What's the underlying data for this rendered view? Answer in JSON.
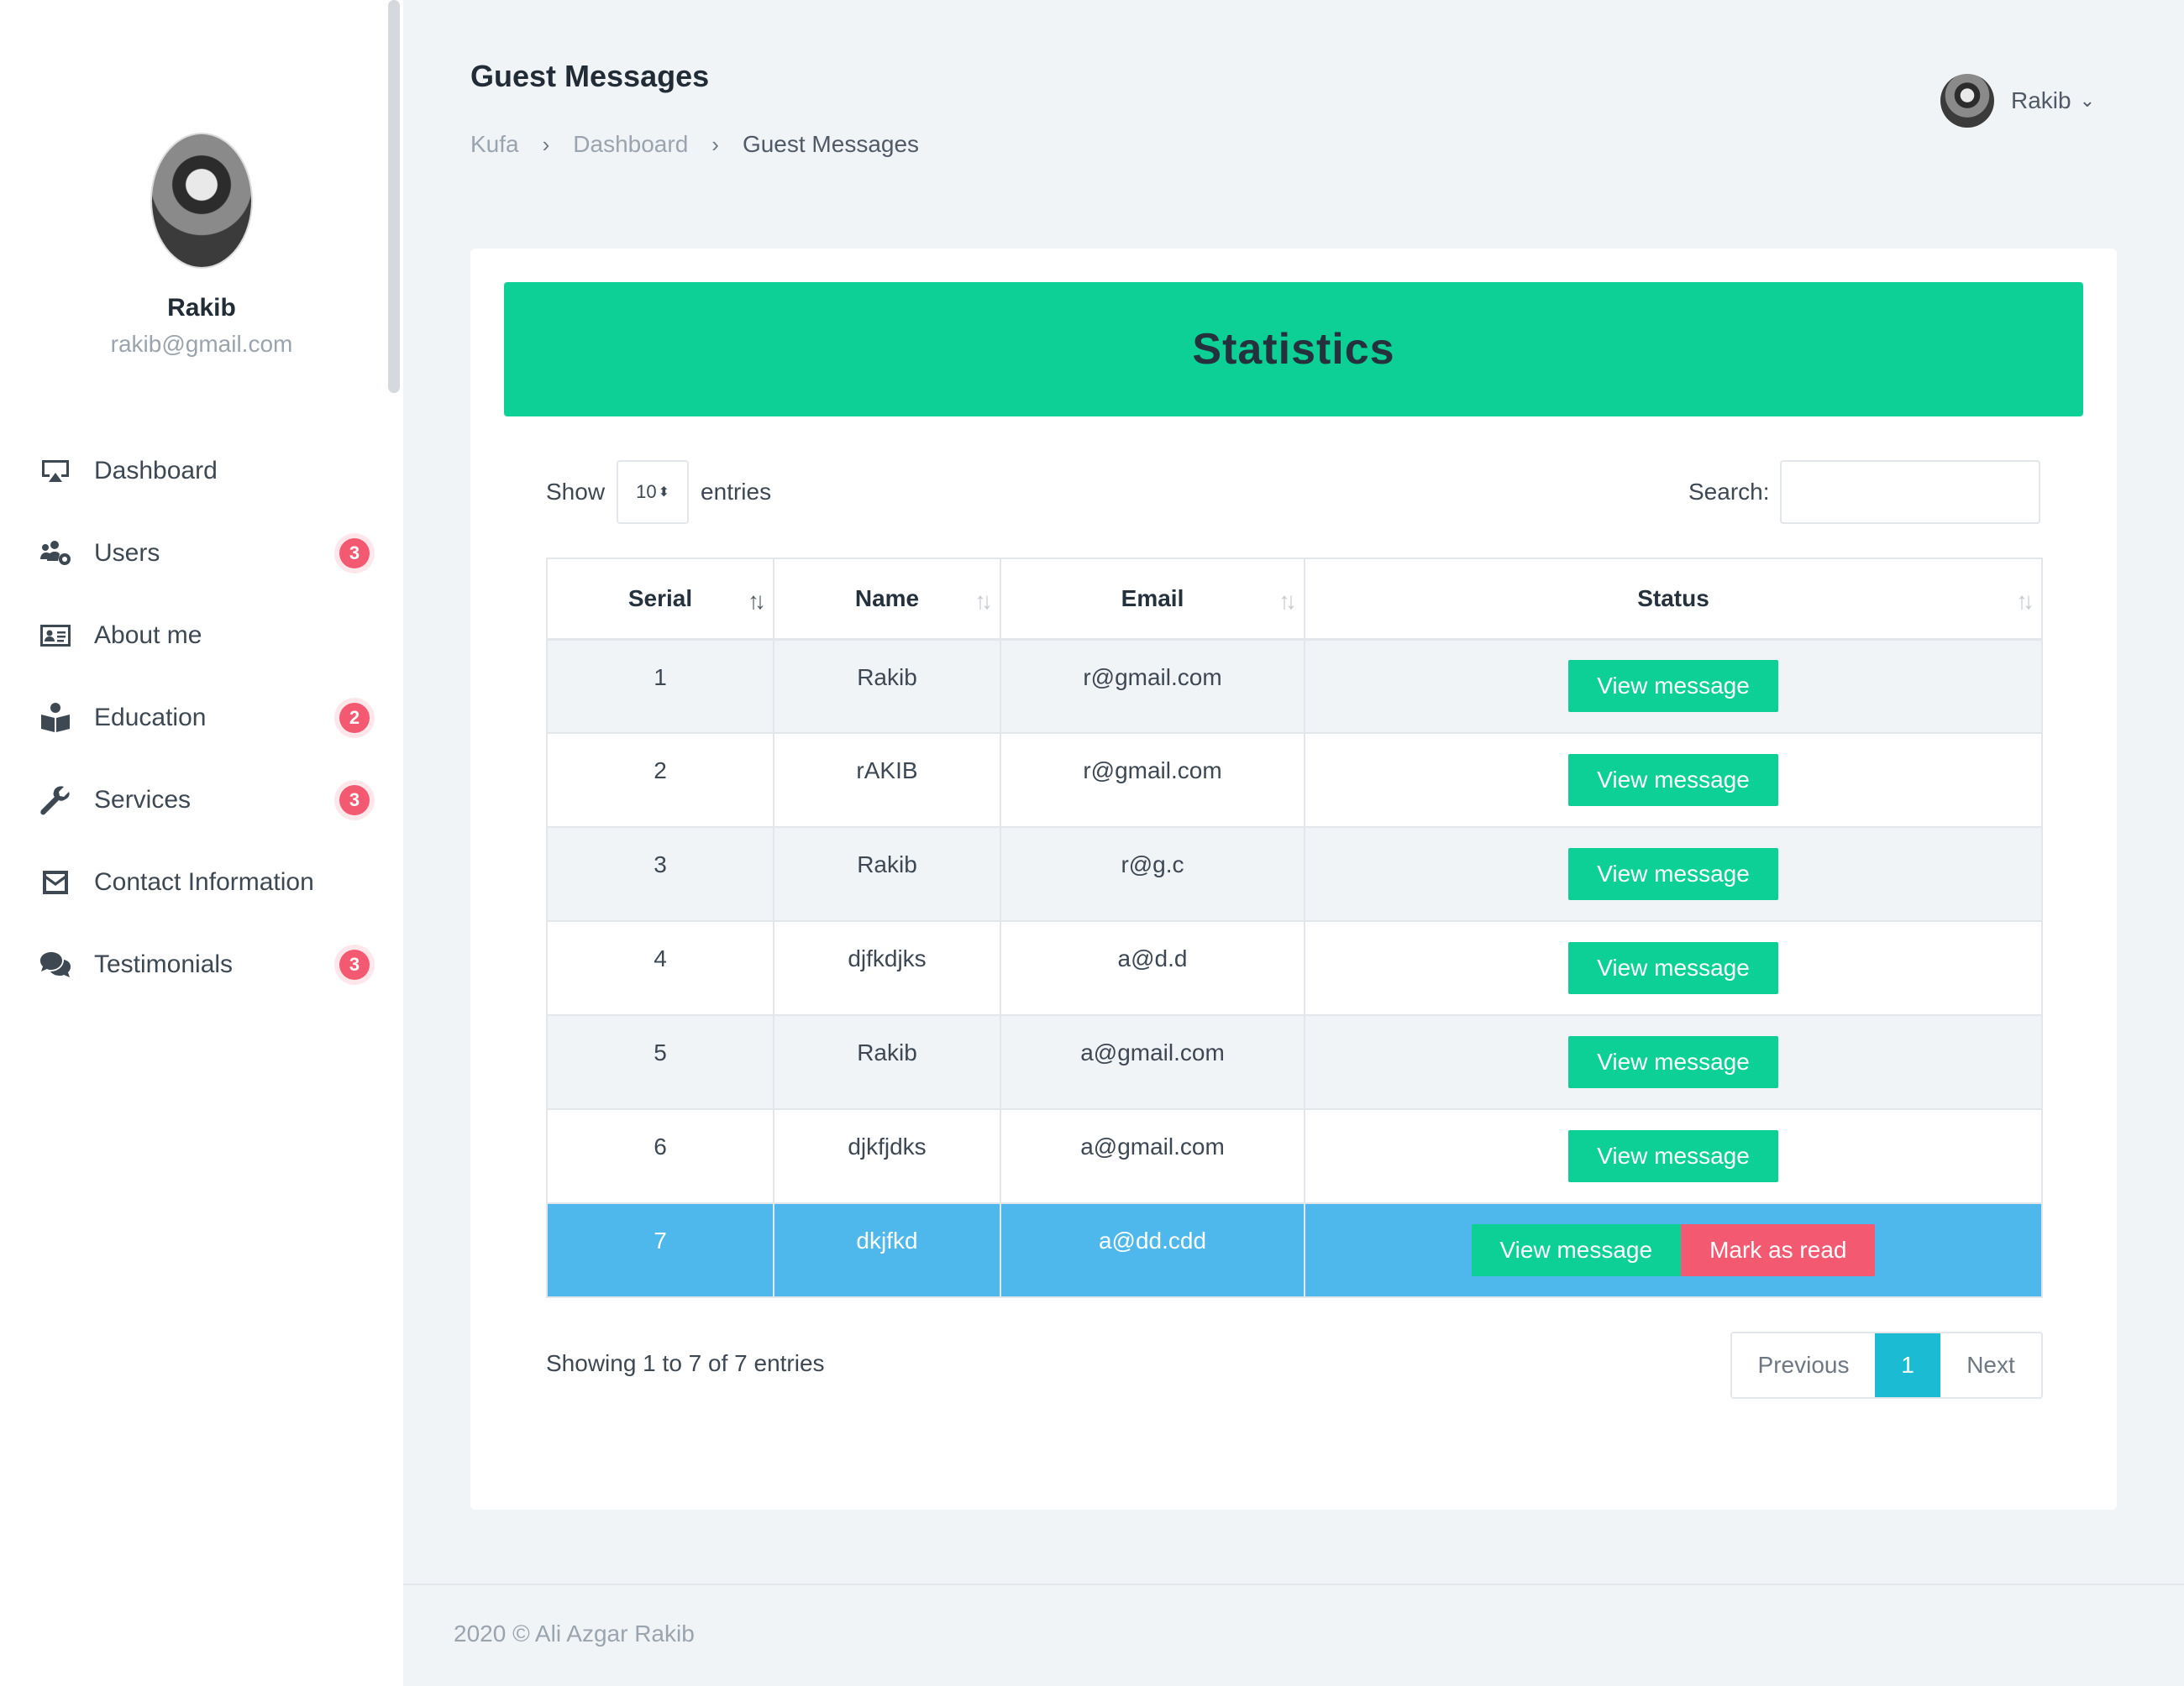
{
  "profile": {
    "name": "Rakib",
    "email": "rakib@gmail.com"
  },
  "sidebar": {
    "items": [
      {
        "label": "Dashboard",
        "icon": "monitor-icon",
        "badge": null
      },
      {
        "label": "Users",
        "icon": "users-gear-icon",
        "badge": "3"
      },
      {
        "label": "About me",
        "icon": "id-card-icon",
        "badge": null
      },
      {
        "label": "Education",
        "icon": "book-reader-icon",
        "badge": "2"
      },
      {
        "label": "Services",
        "icon": "wrench-icon",
        "badge": "3"
      },
      {
        "label": "Contact Information",
        "icon": "envelope-icon",
        "badge": null
      },
      {
        "label": "Testimonials",
        "icon": "comments-icon",
        "badge": "3"
      }
    ]
  },
  "header": {
    "title": "Guest Messages",
    "breadcrumb": [
      "Kufa",
      "Dashboard",
      "Guest Messages"
    ],
    "user": "Rakib"
  },
  "card": {
    "banner": "Statistics",
    "show_label": "Show",
    "entries_value": "10",
    "entries_label": "entries",
    "search_label": "Search:",
    "search_value": "",
    "columns": [
      "Serial",
      "Name",
      "Email",
      "Status"
    ],
    "rows": [
      {
        "serial": "1",
        "name": "Rakib",
        "email": "r@gmail.com"
      },
      {
        "serial": "2",
        "name": "rAKIB",
        "email": "r@gmail.com"
      },
      {
        "serial": "3",
        "name": "Rakib",
        "email": "r@g.c"
      },
      {
        "serial": "4",
        "name": "djfkdjks",
        "email": "a@d.d"
      },
      {
        "serial": "5",
        "name": "Rakib",
        "email": "a@gmail.com"
      },
      {
        "serial": "6",
        "name": "djkfjdks",
        "email": "a@gmail.com"
      },
      {
        "serial": "7",
        "name": "dkjfkd",
        "email": "a@dd.cdd"
      }
    ],
    "view_label": "View message",
    "mark_read_label": "Mark as read",
    "info": "Showing 1 to 7 of 7 entries",
    "pager": {
      "previous": "Previous",
      "current": "1",
      "next": "Next"
    }
  },
  "footer": "2020 © Ali Azgar Rakib",
  "colors": {
    "accent_green": "#0cd095",
    "badge_red": "#f35971",
    "selected_row": "#4eb7eb",
    "pager_active": "#1bbcd3"
  }
}
